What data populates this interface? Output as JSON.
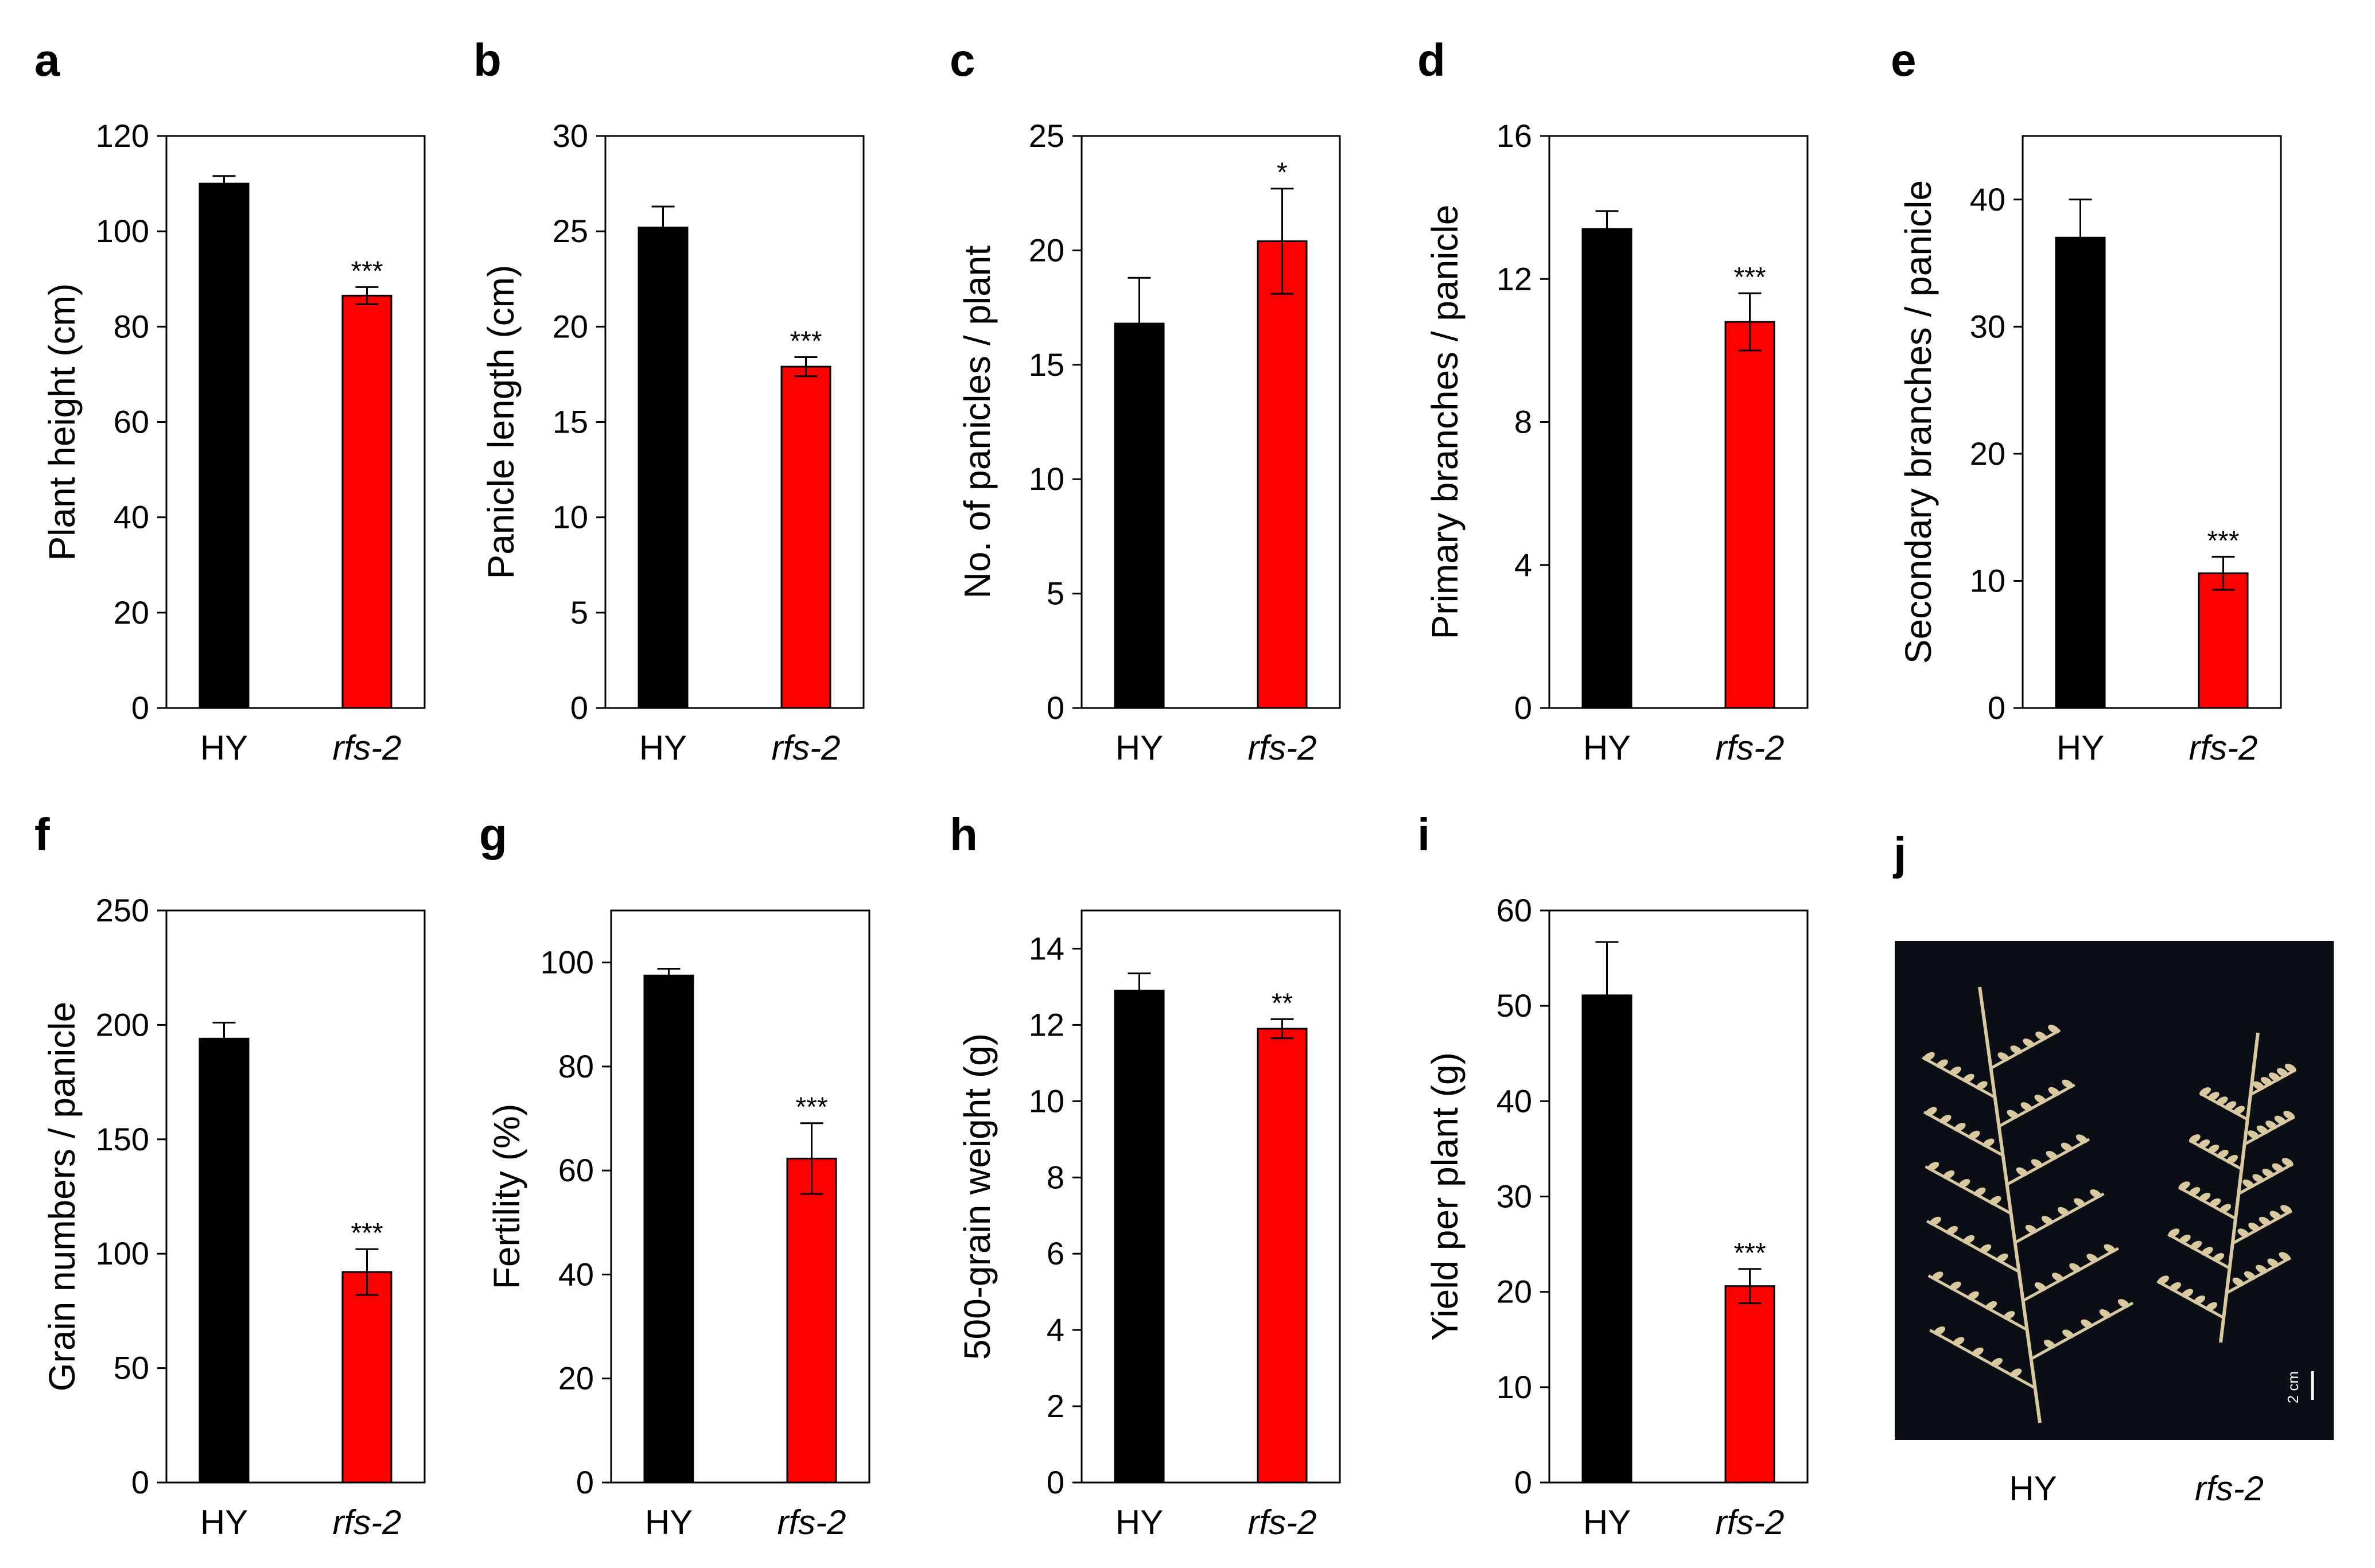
{
  "chart_data": [
    {
      "panel": "a",
      "type": "bar",
      "categories": [
        "HY",
        "rfs-2"
      ],
      "values": [
        110,
        86.5
      ],
      "errors": [
        1.6,
        1.8
      ],
      "significance": [
        "",
        "***"
      ],
      "ylabel": "Plant height (cm)",
      "ylim": [
        0,
        120
      ],
      "yticks": [
        0,
        20,
        40,
        60,
        80,
        100,
        120
      ],
      "colors": [
        "#000000",
        "#ff0000"
      ]
    },
    {
      "panel": "b",
      "type": "bar",
      "categories": [
        "HY",
        "rfs-2"
      ],
      "values": [
        25.2,
        17.9
      ],
      "errors": [
        1.1,
        0.5
      ],
      "significance": [
        "",
        "***"
      ],
      "ylabel": "Panicle length (cm)",
      "ylim": [
        0,
        30
      ],
      "yticks": [
        0,
        5,
        10,
        15,
        20,
        25,
        30
      ],
      "colors": [
        "#000000",
        "#ff0000"
      ]
    },
    {
      "panel": "c",
      "type": "bar",
      "categories": [
        "HY",
        "rfs-2"
      ],
      "values": [
        16.8,
        20.4
      ],
      "errors": [
        2.0,
        2.3
      ],
      "significance": [
        "",
        "*"
      ],
      "ylabel": "No. of panicles / plant",
      "ylim": [
        0,
        25
      ],
      "yticks": [
        0,
        5,
        10,
        15,
        20,
        25
      ],
      "colors": [
        "#000000",
        "#ff0000"
      ]
    },
    {
      "panel": "d",
      "type": "bar",
      "categories": [
        "HY",
        "rfs-2"
      ],
      "values": [
        13.4,
        10.8
      ],
      "errors": [
        0.5,
        0.8
      ],
      "significance": [
        "",
        "***"
      ],
      "ylabel": "Primary branches / panicle",
      "ylim": [
        0,
        16
      ],
      "yticks": [
        0,
        4,
        8,
        12,
        16
      ],
      "colors": [
        "#000000",
        "#ff0000"
      ]
    },
    {
      "panel": "e",
      "type": "bar",
      "categories": [
        "HY",
        "rfs-2"
      ],
      "values": [
        37.0,
        10.6
      ],
      "errors": [
        3.0,
        1.3
      ],
      "significance": [
        "",
        "***"
      ],
      "ylabel": "Secondary branches / panicle",
      "ylim": [
        0,
        45
      ],
      "yticks": [
        0,
        10,
        20,
        30,
        40
      ],
      "colors": [
        "#000000",
        "#ff0000"
      ]
    },
    {
      "panel": "f",
      "type": "bar",
      "categories": [
        "HY",
        "rfs-2"
      ],
      "values": [
        194,
        92
      ],
      "errors": [
        7,
        10
      ],
      "significance": [
        "",
        "***"
      ],
      "ylabel": "Grain numbers / panicle",
      "ylim": [
        0,
        250
      ],
      "yticks": [
        0,
        50,
        100,
        150,
        200,
        250
      ],
      "colors": [
        "#000000",
        "#ff0000"
      ]
    },
    {
      "panel": "g",
      "type": "bar",
      "categories": [
        "HY",
        "rfs-2"
      ],
      "values": [
        97.5,
        62.3
      ],
      "errors": [
        1.3,
        6.8
      ],
      "significance": [
        "",
        "***"
      ],
      "ylabel": "Fertility (%)",
      "ylim": [
        0,
        110
      ],
      "yticks": [
        0,
        20,
        40,
        60,
        80,
        100
      ],
      "colors": [
        "#000000",
        "#ff0000"
      ]
    },
    {
      "panel": "h",
      "type": "bar",
      "categories": [
        "HY",
        "rfs-2"
      ],
      "values": [
        12.9,
        11.9
      ],
      "errors": [
        0.45,
        0.25
      ],
      "significance": [
        "",
        "**"
      ],
      "ylabel": "500-grain weight (g)",
      "ylim": [
        0,
        15
      ],
      "yticks": [
        0,
        2,
        4,
        6,
        8,
        10,
        12,
        14
      ],
      "colors": [
        "#000000",
        "#ff0000"
      ]
    },
    {
      "panel": "i",
      "type": "bar",
      "categories": [
        "HY",
        "rfs-2"
      ],
      "values": [
        51.1,
        20.6
      ],
      "errors": [
        5.6,
        1.8
      ],
      "significance": [
        "",
        "***"
      ],
      "ylabel": "Yield per plant (g)",
      "ylim": [
        0,
        60
      ],
      "yticks": [
        0,
        10,
        20,
        30,
        40,
        50,
        60
      ],
      "colors": [
        "#000000",
        "#ff0000"
      ]
    }
  ],
  "photo_panel": {
    "panel": "j",
    "labels": [
      "HY",
      "rfs-2"
    ],
    "scale_bar_text": "2 cm"
  }
}
